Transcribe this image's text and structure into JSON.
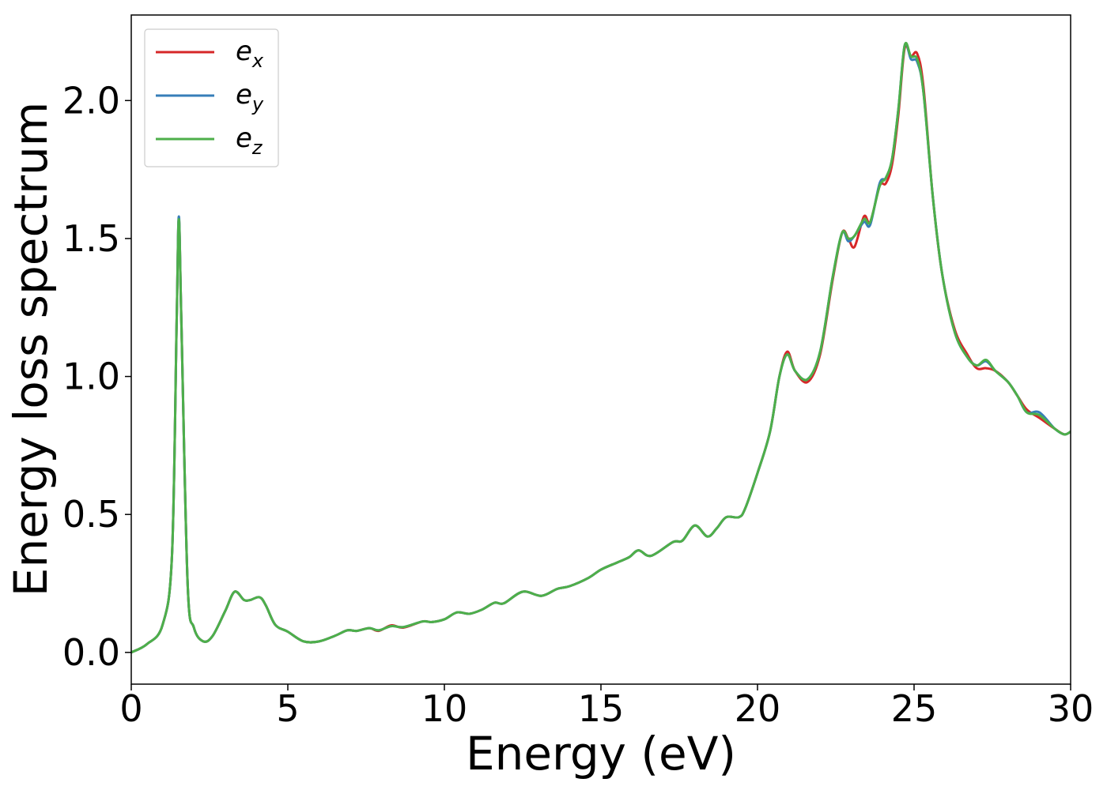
{
  "chart_data": {
    "type": "line",
    "title": "",
    "xlabel": "Energy (eV)",
    "ylabel": "Energy loss spectrum",
    "xlim": [
      0,
      30
    ],
    "ylim": [
      -0.115,
      2.31
    ],
    "xticks": [
      0,
      5,
      10,
      15,
      20,
      25,
      30
    ],
    "yticks": [
      0.0,
      0.5,
      1.0,
      1.5,
      2.0
    ],
    "xtick_labels": [
      "0",
      "5",
      "10",
      "15",
      "20",
      "25",
      "30"
    ],
    "ytick_labels": [
      "0.0",
      "0.5",
      "1.0",
      "1.5",
      "2.0"
    ],
    "grid": false,
    "legend_position": "top-left",
    "series": [
      {
        "name": "e",
        "subscript": "x",
        "color": "#d62728",
        "points": [
          [
            0,
            0
          ],
          [
            0.5,
            0.03
          ],
          [
            1.0,
            0.1
          ],
          [
            1.3,
            0.35
          ],
          [
            1.45,
            1.2
          ],
          [
            1.52,
            1.57
          ],
          [
            1.6,
            1.2
          ],
          [
            1.8,
            0.25
          ],
          [
            2.0,
            0.09
          ],
          [
            2.3,
            0.04
          ],
          [
            2.6,
            0.06
          ],
          [
            3.0,
            0.15
          ],
          [
            3.3,
            0.22
          ],
          [
            3.6,
            0.19
          ],
          [
            3.8,
            0.19
          ],
          [
            4.1,
            0.2
          ],
          [
            4.3,
            0.17
          ],
          [
            4.6,
            0.1
          ],
          [
            5.0,
            0.075
          ],
          [
            5.5,
            0.04
          ],
          [
            6.0,
            0.04
          ],
          [
            6.5,
            0.06
          ],
          [
            6.9,
            0.08
          ],
          [
            7.2,
            0.078
          ],
          [
            7.6,
            0.088
          ],
          [
            7.9,
            0.078
          ],
          [
            8.3,
            0.098
          ],
          [
            8.7,
            0.09
          ],
          [
            9.3,
            0.112
          ],
          [
            9.6,
            0.11
          ],
          [
            10.0,
            0.12
          ],
          [
            10.4,
            0.145
          ],
          [
            10.8,
            0.14
          ],
          [
            11.2,
            0.155
          ],
          [
            11.6,
            0.18
          ],
          [
            11.9,
            0.178
          ],
          [
            12.5,
            0.22
          ],
          [
            13.1,
            0.205
          ],
          [
            13.6,
            0.23
          ],
          [
            14.0,
            0.24
          ],
          [
            14.6,
            0.27
          ],
          [
            15.0,
            0.3
          ],
          [
            15.5,
            0.325
          ],
          [
            15.9,
            0.345
          ],
          [
            16.2,
            0.37
          ],
          [
            16.6,
            0.35
          ],
          [
            17.3,
            0.4
          ],
          [
            17.6,
            0.405
          ],
          [
            18.0,
            0.46
          ],
          [
            18.4,
            0.42
          ],
          [
            18.7,
            0.45
          ],
          [
            19.0,
            0.49
          ],
          [
            19.4,
            0.49
          ],
          [
            19.6,
            0.52
          ],
          [
            20.0,
            0.65
          ],
          [
            20.4,
            0.8
          ],
          [
            20.7,
            1.0
          ],
          [
            20.95,
            1.09
          ],
          [
            21.2,
            1.02
          ],
          [
            21.6,
            0.98
          ],
          [
            22.0,
            1.08
          ],
          [
            22.4,
            1.35
          ],
          [
            22.7,
            1.52
          ],
          [
            22.9,
            1.5
          ],
          [
            23.1,
            1.47
          ],
          [
            23.4,
            1.58
          ],
          [
            23.6,
            1.56
          ],
          [
            23.9,
            1.69
          ],
          [
            24.1,
            1.7
          ],
          [
            24.3,
            1.77
          ],
          [
            24.5,
            1.95
          ],
          [
            24.7,
            2.19
          ],
          [
            24.9,
            2.16
          ],
          [
            25.1,
            2.17
          ],
          [
            25.3,
            2.05
          ],
          [
            25.6,
            1.65
          ],
          [
            25.9,
            1.37
          ],
          [
            26.3,
            1.17
          ],
          [
            26.7,
            1.08
          ],
          [
            27.0,
            1.03
          ],
          [
            27.3,
            1.03
          ],
          [
            27.6,
            1.02
          ],
          [
            28.0,
            0.98
          ],
          [
            28.3,
            0.93
          ],
          [
            28.6,
            0.88
          ],
          [
            29.0,
            0.85
          ],
          [
            29.5,
            0.81
          ],
          [
            29.8,
            0.79
          ],
          [
            30.0,
            0.8
          ]
        ]
      },
      {
        "name": "e",
        "subscript": "y",
        "color": "#377eb8",
        "points": [
          [
            0,
            0
          ],
          [
            0.5,
            0.03
          ],
          [
            1.0,
            0.1
          ],
          [
            1.3,
            0.35
          ],
          [
            1.45,
            1.2
          ],
          [
            1.52,
            1.58
          ],
          [
            1.6,
            1.2
          ],
          [
            1.8,
            0.25
          ],
          [
            2.0,
            0.09
          ],
          [
            2.3,
            0.04
          ],
          [
            2.6,
            0.06
          ],
          [
            3.0,
            0.15
          ],
          [
            3.3,
            0.22
          ],
          [
            3.6,
            0.19
          ],
          [
            3.8,
            0.19
          ],
          [
            4.1,
            0.2
          ],
          [
            4.3,
            0.17
          ],
          [
            4.6,
            0.1
          ],
          [
            5.0,
            0.075
          ],
          [
            5.5,
            0.04
          ],
          [
            6.0,
            0.04
          ],
          [
            6.5,
            0.06
          ],
          [
            6.9,
            0.08
          ],
          [
            7.2,
            0.078
          ],
          [
            7.6,
            0.088
          ],
          [
            7.9,
            0.08
          ],
          [
            8.3,
            0.095
          ],
          [
            8.7,
            0.092
          ],
          [
            9.3,
            0.112
          ],
          [
            9.6,
            0.11
          ],
          [
            10.0,
            0.12
          ],
          [
            10.4,
            0.145
          ],
          [
            10.8,
            0.14
          ],
          [
            11.2,
            0.155
          ],
          [
            11.6,
            0.18
          ],
          [
            11.9,
            0.178
          ],
          [
            12.5,
            0.22
          ],
          [
            13.1,
            0.205
          ],
          [
            13.6,
            0.23
          ],
          [
            14.0,
            0.24
          ],
          [
            14.6,
            0.27
          ],
          [
            15.0,
            0.3
          ],
          [
            15.5,
            0.325
          ],
          [
            15.9,
            0.345
          ],
          [
            16.2,
            0.37
          ],
          [
            16.6,
            0.35
          ],
          [
            17.3,
            0.4
          ],
          [
            17.6,
            0.405
          ],
          [
            18.0,
            0.46
          ],
          [
            18.4,
            0.42
          ],
          [
            18.7,
            0.45
          ],
          [
            19.0,
            0.49
          ],
          [
            19.4,
            0.49
          ],
          [
            19.6,
            0.52
          ],
          [
            20.0,
            0.65
          ],
          [
            20.4,
            0.8
          ],
          [
            20.7,
            1.0
          ],
          [
            20.95,
            1.08
          ],
          [
            21.2,
            1.02
          ],
          [
            21.6,
            0.99
          ],
          [
            22.0,
            1.09
          ],
          [
            22.4,
            1.36
          ],
          [
            22.7,
            1.52
          ],
          [
            22.9,
            1.49
          ],
          [
            23.1,
            1.51
          ],
          [
            23.4,
            1.56
          ],
          [
            23.6,
            1.55
          ],
          [
            23.9,
            1.7
          ],
          [
            24.1,
            1.72
          ],
          [
            24.3,
            1.79
          ],
          [
            24.5,
            1.97
          ],
          [
            24.7,
            2.2
          ],
          [
            24.9,
            2.15
          ],
          [
            25.1,
            2.14
          ],
          [
            25.3,
            2.03
          ],
          [
            25.6,
            1.65
          ],
          [
            25.9,
            1.37
          ],
          [
            26.3,
            1.16
          ],
          [
            26.7,
            1.07
          ],
          [
            27.0,
            1.04
          ],
          [
            27.3,
            1.055
          ],
          [
            27.6,
            1.02
          ],
          [
            28.0,
            0.98
          ],
          [
            28.3,
            0.93
          ],
          [
            28.6,
            0.87
          ],
          [
            29.0,
            0.87
          ],
          [
            29.5,
            0.81
          ],
          [
            29.8,
            0.79
          ],
          [
            30.0,
            0.8
          ]
        ]
      },
      {
        "name": "e",
        "subscript": "z",
        "color": "#4daf4a",
        "points": [
          [
            0,
            0
          ],
          [
            0.5,
            0.03
          ],
          [
            1.0,
            0.1
          ],
          [
            1.3,
            0.35
          ],
          [
            1.45,
            1.2
          ],
          [
            1.52,
            1.57
          ],
          [
            1.6,
            1.2
          ],
          [
            1.8,
            0.25
          ],
          [
            2.0,
            0.09
          ],
          [
            2.3,
            0.04
          ],
          [
            2.6,
            0.06
          ],
          [
            3.0,
            0.15
          ],
          [
            3.3,
            0.22
          ],
          [
            3.6,
            0.19
          ],
          [
            3.8,
            0.19
          ],
          [
            4.1,
            0.2
          ],
          [
            4.3,
            0.17
          ],
          [
            4.6,
            0.1
          ],
          [
            5.0,
            0.075
          ],
          [
            5.5,
            0.04
          ],
          [
            6.0,
            0.04
          ],
          [
            6.5,
            0.06
          ],
          [
            6.9,
            0.08
          ],
          [
            7.2,
            0.078
          ],
          [
            7.6,
            0.088
          ],
          [
            7.9,
            0.08
          ],
          [
            8.3,
            0.095
          ],
          [
            8.7,
            0.092
          ],
          [
            9.3,
            0.112
          ],
          [
            9.6,
            0.11
          ],
          [
            10.0,
            0.12
          ],
          [
            10.4,
            0.145
          ],
          [
            10.8,
            0.14
          ],
          [
            11.2,
            0.155
          ],
          [
            11.6,
            0.18
          ],
          [
            11.9,
            0.178
          ],
          [
            12.5,
            0.22
          ],
          [
            13.1,
            0.205
          ],
          [
            13.6,
            0.23
          ],
          [
            14.0,
            0.24
          ],
          [
            14.6,
            0.27
          ],
          [
            15.0,
            0.3
          ],
          [
            15.5,
            0.325
          ],
          [
            15.9,
            0.345
          ],
          [
            16.2,
            0.37
          ],
          [
            16.6,
            0.35
          ],
          [
            17.3,
            0.4
          ],
          [
            17.6,
            0.405
          ],
          [
            18.0,
            0.46
          ],
          [
            18.4,
            0.42
          ],
          [
            18.7,
            0.45
          ],
          [
            19.0,
            0.49
          ],
          [
            19.4,
            0.49
          ],
          [
            19.6,
            0.52
          ],
          [
            20.0,
            0.65
          ],
          [
            20.4,
            0.8
          ],
          [
            20.7,
            1.0
          ],
          [
            20.95,
            1.08
          ],
          [
            21.2,
            1.02
          ],
          [
            21.6,
            0.99
          ],
          [
            22.0,
            1.09
          ],
          [
            22.4,
            1.36
          ],
          [
            22.7,
            1.52
          ],
          [
            22.9,
            1.5
          ],
          [
            23.1,
            1.51
          ],
          [
            23.4,
            1.57
          ],
          [
            23.6,
            1.56
          ],
          [
            23.9,
            1.69
          ],
          [
            24.1,
            1.72
          ],
          [
            24.3,
            1.79
          ],
          [
            24.5,
            1.97
          ],
          [
            24.7,
            2.2
          ],
          [
            24.9,
            2.16
          ],
          [
            25.1,
            2.15
          ],
          [
            25.3,
            2.03
          ],
          [
            25.6,
            1.65
          ],
          [
            25.9,
            1.37
          ],
          [
            26.3,
            1.16
          ],
          [
            26.7,
            1.07
          ],
          [
            27.0,
            1.04
          ],
          [
            27.3,
            1.06
          ],
          [
            27.6,
            1.02
          ],
          [
            28.0,
            0.98
          ],
          [
            28.3,
            0.93
          ],
          [
            28.6,
            0.87
          ],
          [
            29.0,
            0.86
          ],
          [
            29.5,
            0.81
          ],
          [
            29.8,
            0.79
          ],
          [
            30.0,
            0.8
          ]
        ]
      }
    ]
  }
}
